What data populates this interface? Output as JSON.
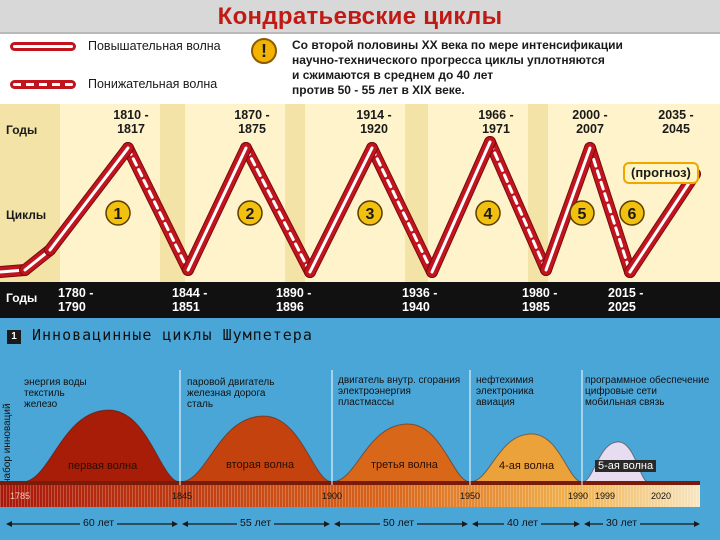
{
  "kondratiev": {
    "title": "Кондратьевские циклы",
    "legend": {
      "rising_label": "Повышательная волна",
      "falling_label": "Понижательная волна"
    },
    "warning_icon": "exclamation-icon",
    "note_lines": [
      "Со второй половины XX века  по мере интенсификации",
      "научно-технического прогресса  циклы уплотняются",
      "и сжимаются в среднем до 40 лет",
      "против 50 - 55 лет в XIX веке."
    ],
    "years_label": "Годы",
    "cycles_label": "Циклы",
    "peaks": [
      {
        "a": "1810 -",
        "b": "1817"
      },
      {
        "a": "1870 -",
        "b": "1875"
      },
      {
        "a": "1914 -",
        "b": "1920"
      },
      {
        "a": "1966 -",
        "b": "1971"
      },
      {
        "a": "2000 -",
        "b": "2007"
      },
      {
        "a": "2035 -",
        "b": "2045"
      }
    ],
    "troughs": [
      {
        "a": "1780 -",
        "b": "1790"
      },
      {
        "a": "1844 -",
        "b": "1851"
      },
      {
        "a": "1890 -",
        "b": "1896"
      },
      {
        "a": "1936 -",
        "b": "1940"
      },
      {
        "a": "1980 -",
        "b": "1985"
      },
      {
        "a": "2015 -",
        "b": "2025"
      }
    ],
    "cycle_numbers": [
      "1",
      "2",
      "3",
      "4",
      "5",
      "6"
    ],
    "forecast_label": "(прогноз)",
    "colors": {
      "wave": "#c2141d",
      "band": "#fff3cc",
      "background": "#f3e3a6",
      "badge": "#f2c10f"
    }
  },
  "schumpeter": {
    "number": "1",
    "title": "Инновацинные циклы Шумпетера",
    "axis_caption": "набор инноваций",
    "waves": [
      {
        "notes": [
          "энергия воды",
          "текстиль",
          "железо"
        ],
        "name": "первая волна"
      },
      {
        "notes": [
          "паровой двигатель",
          "железная дорога",
          "сталь"
        ],
        "name": "вторая волна"
      },
      {
        "notes": [
          "двигатель внутр. сгорания",
          "электроэнергия",
          "пластмассы"
        ],
        "name": "третья волна"
      },
      {
        "notes": [
          "нефтехимия",
          "электроника",
          "авиация"
        ],
        "name": "4-ая волна"
      },
      {
        "notes": [
          "программное обеспечение",
          "цифровые сети",
          "мобильная связь"
        ],
        "name": "5-ая волна"
      }
    ],
    "timeline_years": [
      "1785",
      "1845",
      "1900",
      "1950",
      "1990",
      "1999",
      "2020"
    ],
    "durations": [
      "60 лет",
      "55 лет",
      "50 лет",
      "40 лет",
      "30 лет"
    ],
    "colors": {
      "background": "#4ba6d8",
      "wave1": "#a71d08",
      "wave5": "#e8dcf0"
    }
  }
}
